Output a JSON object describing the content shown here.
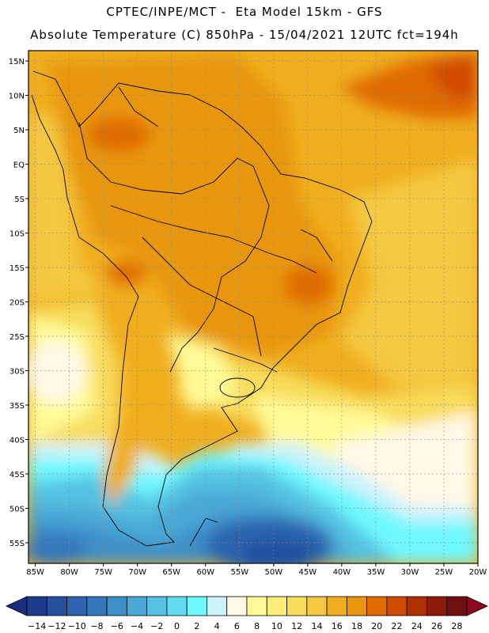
{
  "title": {
    "line1": "CPTEC/INPE/MCT -  Eta Model 15km - GFS",
    "line2": "Absolute Temperature (C) 850hPa - 15/04/2021 12UTC fct=194h"
  },
  "axes": {
    "latitudes": [
      "15N",
      "10N",
      "5N",
      "EQ",
      "5S",
      "10S",
      "15S",
      "20S",
      "25S",
      "30S",
      "35S",
      "40S",
      "45S",
      "50S",
      "55S"
    ],
    "longitudes": [
      "85W",
      "80W",
      "75W",
      "70W",
      "65W",
      "60W",
      "55W",
      "50W",
      "45W",
      "40W",
      "35W",
      "30W",
      "25W",
      "20W"
    ],
    "lat_range": [
      -58,
      16.5
    ],
    "lon_range": [
      -86,
      -20
    ]
  },
  "colorbar": {
    "labels": [
      "-14",
      "-12",
      "-10",
      "-8",
      "-6",
      "-4",
      "-2",
      "0",
      "2",
      "4",
      "6",
      "8",
      "10",
      "12",
      "14",
      "16",
      "18",
      "20",
      "22",
      "24",
      "26",
      "28"
    ],
    "colors": [
      "#1e3c8c",
      "#24509e",
      "#2c64ae",
      "#3478bc",
      "#3e8ec8",
      "#4aa8d6",
      "#54c2e2",
      "#60dcee",
      "#6ef8ff",
      "#ccf2fc",
      "#fff8e6",
      "#fffa96",
      "#fcec78",
      "#f8dc5a",
      "#f4c840",
      "#f0ae1e",
      "#e8960e",
      "#e06c00",
      "#d04c00",
      "#b03000",
      "#8c1c0c",
      "#6e1010"
    ],
    "under_color": "#1a2e80",
    "over_color": "#8c0a1e"
  },
  "legend_units": "C"
}
